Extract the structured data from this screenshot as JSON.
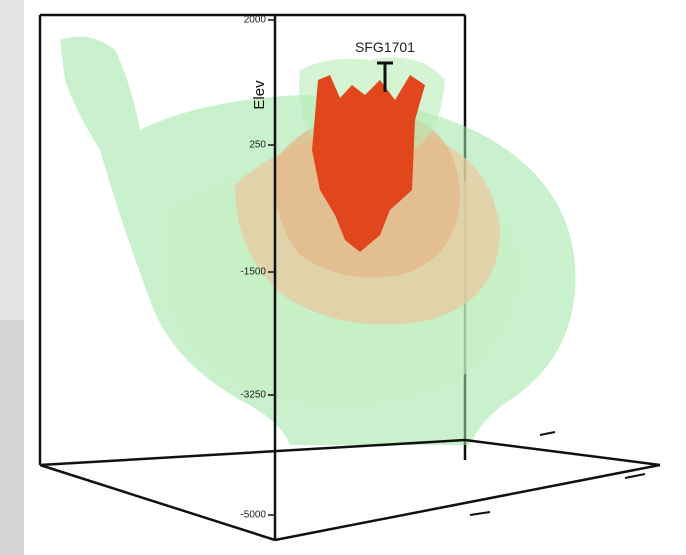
{
  "axis": {
    "label": "Elev",
    "ticks": [
      "2000",
      "250",
      "-1500",
      "-3250",
      "-5000"
    ]
  },
  "well": {
    "label": "SFG1701"
  }
}
